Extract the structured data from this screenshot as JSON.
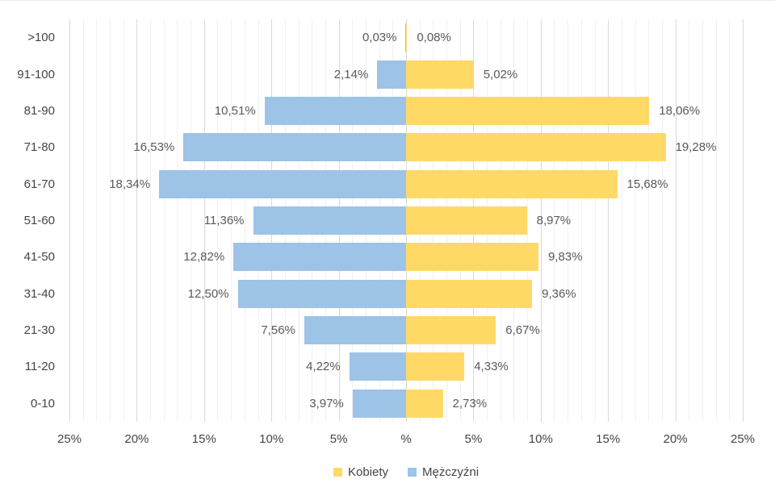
{
  "chart_data": {
    "type": "bar",
    "subtype": "population-pyramid",
    "orientation": "horizontal",
    "title": "",
    "xlabel": "",
    "ylabel": "",
    "grid": true,
    "legend_position": "bottom",
    "categories": [
      ">100",
      "91-100",
      "81-90",
      "71-80",
      "61-70",
      "51-60",
      "41-50",
      "31-40",
      "21-30",
      "11-20",
      "0-10"
    ],
    "series": [
      {
        "name": "Kobiety",
        "side": "right",
        "color": "#FFD966",
        "values": [
          0.08,
          5.02,
          18.06,
          19.28,
          15.68,
          8.97,
          9.83,
          9.36,
          6.67,
          4.33,
          2.73
        ],
        "labels": [
          "0,08%",
          "5,02%",
          "18,06%",
          "19,28%",
          "15,68%",
          "8,97%",
          "9,83%",
          "9,36%",
          "6,67%",
          "4,33%",
          "2,73%"
        ]
      },
      {
        "name": "Mężczyźni",
        "side": "left",
        "color": "#9DC3E6",
        "values": [
          0.03,
          2.14,
          10.51,
          16.53,
          18.34,
          11.36,
          12.82,
          12.5,
          7.56,
          4.22,
          3.97
        ],
        "labels": [
          "0,03%",
          "2,14%",
          "10,51%",
          "16,53%",
          "18,34%",
          "11,36%",
          "12,82%",
          "12,50%",
          "7,56%",
          "4,22%",
          "3,97%"
        ]
      }
    ],
    "x_axis": {
      "min": -25,
      "max": 25,
      "major_step": 5,
      "minor_step": 1,
      "tick_labels": [
        "25%",
        "20%",
        "15%",
        "10%",
        "5%",
        "%",
        "5%",
        "10%",
        "15%",
        "20%",
        "25%"
      ]
    }
  },
  "colors": {
    "women_bar": "#FFD966",
    "men_bar": "#9DC3E6",
    "major_gridline": "#d9d9d9",
    "minor_gridline": "#f1f1f1",
    "axis_text": "#444444",
    "data_label_text": "#595959"
  }
}
